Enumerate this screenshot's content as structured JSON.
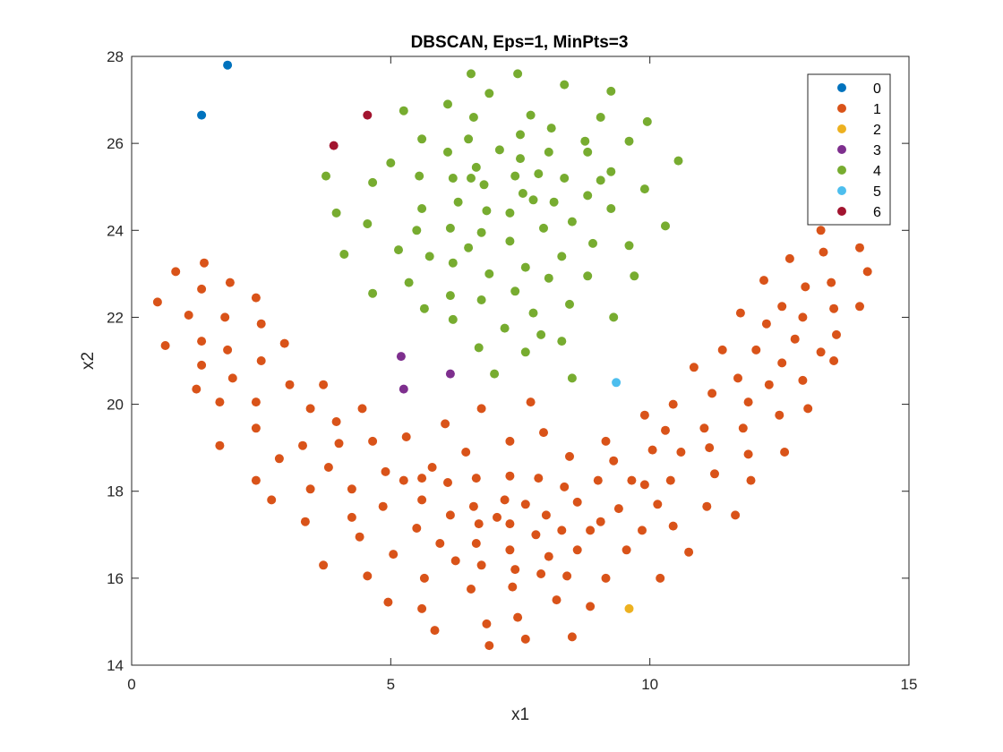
{
  "chart_data": {
    "type": "scatter",
    "title": "DBSCAN, Eps=1, MinPts=3",
    "xlabel": "x1",
    "ylabel": "x2",
    "xlim": [
      0,
      15
    ],
    "ylim": [
      14,
      28
    ],
    "xticks": [
      "0",
      "5",
      "10",
      "15"
    ],
    "yticks": [
      "14",
      "16",
      "18",
      "20",
      "22",
      "24",
      "26",
      "28"
    ],
    "legend_position": "top-right",
    "grid": false,
    "series": [
      {
        "name": "0",
        "color": "#0072BD",
        "points": [
          [
            1.35,
            26.65
          ],
          [
            1.85,
            27.8
          ]
        ]
      },
      {
        "name": "1",
        "color": "#D95319",
        "points": [
          [
            0.5,
            22.35
          ],
          [
            0.65,
            21.35
          ],
          [
            0.85,
            23.05
          ],
          [
            1.1,
            22.05
          ],
          [
            1.25,
            20.35
          ],
          [
            1.35,
            21.45
          ],
          [
            1.35,
            20.9
          ],
          [
            1.35,
            22.65
          ],
          [
            1.4,
            23.25
          ],
          [
            1.7,
            20.05
          ],
          [
            1.7,
            19.05
          ],
          [
            1.8,
            22.0
          ],
          [
            1.85,
            21.25
          ],
          [
            1.9,
            22.8
          ],
          [
            1.95,
            20.6
          ],
          [
            2.4,
            22.45
          ],
          [
            2.4,
            20.05
          ],
          [
            2.4,
            19.45
          ],
          [
            2.4,
            18.25
          ],
          [
            2.5,
            21.85
          ],
          [
            2.5,
            21.0
          ],
          [
            2.7,
            17.8
          ],
          [
            2.85,
            18.75
          ],
          [
            2.95,
            21.4
          ],
          [
            3.05,
            20.45
          ],
          [
            3.3,
            19.05
          ],
          [
            3.35,
            17.3
          ],
          [
            3.45,
            19.9
          ],
          [
            3.45,
            18.05
          ],
          [
            3.7,
            20.45
          ],
          [
            3.7,
            16.3
          ],
          [
            3.8,
            18.55
          ],
          [
            3.95,
            19.6
          ],
          [
            4.0,
            19.1
          ],
          [
            4.25,
            18.05
          ],
          [
            4.25,
            17.4
          ],
          [
            4.4,
            16.95
          ],
          [
            4.45,
            19.9
          ],
          [
            4.55,
            16.05
          ],
          [
            4.65,
            19.15
          ],
          [
            4.85,
            17.65
          ],
          [
            4.9,
            18.45
          ],
          [
            4.95,
            15.45
          ],
          [
            5.05,
            16.55
          ],
          [
            5.25,
            18.25
          ],
          [
            5.3,
            19.25
          ],
          [
            5.5,
            17.15
          ],
          [
            5.6,
            18.3
          ],
          [
            5.6,
            17.8
          ],
          [
            5.6,
            15.3
          ],
          [
            5.65,
            16.0
          ],
          [
            5.8,
            18.55
          ],
          [
            5.85,
            14.8
          ],
          [
            5.95,
            16.8
          ],
          [
            6.05,
            19.55
          ],
          [
            6.1,
            18.2
          ],
          [
            6.15,
            17.45
          ],
          [
            6.25,
            16.4
          ],
          [
            6.45,
            18.9
          ],
          [
            6.55,
            15.75
          ],
          [
            6.6,
            17.65
          ],
          [
            6.65,
            18.3
          ],
          [
            6.65,
            16.8
          ],
          [
            6.7,
            17.25
          ],
          [
            6.75,
            19.9
          ],
          [
            6.75,
            16.3
          ],
          [
            6.85,
            14.95
          ],
          [
            6.9,
            14.45
          ],
          [
            7.05,
            17.4
          ],
          [
            7.2,
            17.8
          ],
          [
            7.3,
            19.15
          ],
          [
            7.3,
            18.35
          ],
          [
            7.3,
            17.25
          ],
          [
            7.3,
            16.65
          ],
          [
            7.35,
            15.8
          ],
          [
            7.4,
            16.2
          ],
          [
            7.45,
            15.1
          ],
          [
            7.6,
            17.7
          ],
          [
            7.6,
            14.6
          ],
          [
            7.7,
            20.05
          ],
          [
            7.8,
            17.0
          ],
          [
            7.85,
            18.3
          ],
          [
            7.9,
            16.1
          ],
          [
            7.95,
            19.35
          ],
          [
            8.0,
            17.45
          ],
          [
            8.05,
            16.5
          ],
          [
            8.2,
            15.5
          ],
          [
            8.3,
            17.1
          ],
          [
            8.35,
            18.1
          ],
          [
            8.4,
            16.05
          ],
          [
            8.45,
            18.8
          ],
          [
            8.5,
            14.65
          ],
          [
            8.6,
            17.75
          ],
          [
            8.6,
            16.65
          ],
          [
            8.85,
            17.1
          ],
          [
            8.85,
            15.35
          ],
          [
            9.0,
            18.25
          ],
          [
            9.05,
            17.3
          ],
          [
            9.15,
            19.15
          ],
          [
            9.15,
            16.0
          ],
          [
            9.3,
            18.7
          ],
          [
            9.4,
            17.6
          ],
          [
            9.55,
            16.65
          ],
          [
            9.65,
            18.25
          ],
          [
            9.85,
            17.1
          ],
          [
            9.9,
            18.15
          ],
          [
            9.9,
            19.75
          ],
          [
            10.05,
            18.95
          ],
          [
            10.15,
            17.7
          ],
          [
            10.2,
            16.0
          ],
          [
            10.3,
            19.4
          ],
          [
            10.4,
            18.25
          ],
          [
            10.45,
            17.2
          ],
          [
            10.45,
            20.0
          ],
          [
            10.6,
            18.9
          ],
          [
            10.75,
            16.6
          ],
          [
            10.85,
            20.85
          ],
          [
            11.05,
            19.45
          ],
          [
            11.1,
            17.65
          ],
          [
            11.15,
            19.0
          ],
          [
            11.2,
            20.25
          ],
          [
            11.25,
            18.4
          ],
          [
            11.4,
            21.25
          ],
          [
            11.65,
            17.45
          ],
          [
            11.7,
            20.6
          ],
          [
            11.75,
            22.1
          ],
          [
            11.8,
            19.45
          ],
          [
            11.9,
            18.85
          ],
          [
            11.9,
            20.05
          ],
          [
            11.95,
            18.25
          ],
          [
            12.05,
            21.25
          ],
          [
            12.2,
            22.85
          ],
          [
            12.25,
            21.85
          ],
          [
            12.3,
            20.45
          ],
          [
            12.5,
            19.75
          ],
          [
            12.55,
            20.95
          ],
          [
            12.55,
            22.25
          ],
          [
            12.6,
            18.9
          ],
          [
            12.7,
            23.35
          ],
          [
            12.8,
            21.5
          ],
          [
            12.95,
            20.55
          ],
          [
            12.95,
            22.0
          ],
          [
            13.0,
            22.7
          ],
          [
            13.05,
            19.9
          ],
          [
            13.3,
            21.2
          ],
          [
            13.3,
            24.0
          ],
          [
            13.35,
            23.5
          ],
          [
            13.5,
            22.8
          ],
          [
            13.55,
            22.2
          ],
          [
            13.55,
            21.0
          ],
          [
            13.6,
            21.6
          ],
          [
            14.05,
            23.6
          ],
          [
            14.05,
            22.25
          ],
          [
            14.2,
            23.05
          ]
        ]
      },
      {
        "name": "2",
        "color": "#EDB120",
        "points": [
          [
            9.6,
            15.3
          ]
        ]
      },
      {
        "name": "3",
        "color": "#7E2F8E",
        "points": [
          [
            5.2,
            21.1
          ],
          [
            5.25,
            20.35
          ],
          [
            6.15,
            20.7
          ]
        ]
      },
      {
        "name": "4",
        "color": "#77AC30",
        "points": [
          [
            3.75,
            25.25
          ],
          [
            3.95,
            24.4
          ],
          [
            4.1,
            23.45
          ],
          [
            4.55,
            24.15
          ],
          [
            4.65,
            25.1
          ],
          [
            4.65,
            22.55
          ],
          [
            5.0,
            25.55
          ],
          [
            5.15,
            23.55
          ],
          [
            5.25,
            26.75
          ],
          [
            5.35,
            22.8
          ],
          [
            5.5,
            24.0
          ],
          [
            5.55,
            25.25
          ],
          [
            5.6,
            26.1
          ],
          [
            5.6,
            24.5
          ],
          [
            5.65,
            22.2
          ],
          [
            5.75,
            23.4
          ],
          [
            6.1,
            26.9
          ],
          [
            6.1,
            25.8
          ],
          [
            6.15,
            24.05
          ],
          [
            6.15,
            22.5
          ],
          [
            6.2,
            25.2
          ],
          [
            6.2,
            23.25
          ],
          [
            6.2,
            21.95
          ],
          [
            6.3,
            24.65
          ],
          [
            6.5,
            26.1
          ],
          [
            6.5,
            23.6
          ],
          [
            6.55,
            25.2
          ],
          [
            6.55,
            27.6
          ],
          [
            6.6,
            26.6
          ],
          [
            6.65,
            25.45
          ],
          [
            6.7,
            21.3
          ],
          [
            6.75,
            23.95
          ],
          [
            6.75,
            22.4
          ],
          [
            6.8,
            25.05
          ],
          [
            6.85,
            24.45
          ],
          [
            6.9,
            27.15
          ],
          [
            6.9,
            23.0
          ],
          [
            7.0,
            20.7
          ],
          [
            7.1,
            25.85
          ],
          [
            7.2,
            21.75
          ],
          [
            7.3,
            24.4
          ],
          [
            7.3,
            23.75
          ],
          [
            7.4,
            25.25
          ],
          [
            7.4,
            22.6
          ],
          [
            7.45,
            27.6
          ],
          [
            7.5,
            26.2
          ],
          [
            7.5,
            25.65
          ],
          [
            7.55,
            24.85
          ],
          [
            7.6,
            23.15
          ],
          [
            7.6,
            21.2
          ],
          [
            7.7,
            26.65
          ],
          [
            7.75,
            24.7
          ],
          [
            7.75,
            22.1
          ],
          [
            7.85,
            25.3
          ],
          [
            7.9,
            21.6
          ],
          [
            7.95,
            24.05
          ],
          [
            8.05,
            25.8
          ],
          [
            8.05,
            22.9
          ],
          [
            8.1,
            26.35
          ],
          [
            8.15,
            24.65
          ],
          [
            8.3,
            23.4
          ],
          [
            8.3,
            21.45
          ],
          [
            8.35,
            27.35
          ],
          [
            8.35,
            25.2
          ],
          [
            8.45,
            22.3
          ],
          [
            8.5,
            24.2
          ],
          [
            8.5,
            20.6
          ],
          [
            8.75,
            26.05
          ],
          [
            8.8,
            25.8
          ],
          [
            8.8,
            24.8
          ],
          [
            8.8,
            22.95
          ],
          [
            8.9,
            23.7
          ],
          [
            9.05,
            26.6
          ],
          [
            9.05,
            25.15
          ],
          [
            9.25,
            27.2
          ],
          [
            9.25,
            25.35
          ],
          [
            9.25,
            24.5
          ],
          [
            9.3,
            22.0
          ],
          [
            9.6,
            26.05
          ],
          [
            9.6,
            23.65
          ],
          [
            9.7,
            22.95
          ],
          [
            9.9,
            24.95
          ],
          [
            9.95,
            26.5
          ],
          [
            10.3,
            24.1
          ],
          [
            10.55,
            25.6
          ]
        ]
      },
      {
        "name": "5",
        "color": "#4DBEEE",
        "points": [
          [
            9.35,
            20.5
          ]
        ]
      },
      {
        "name": "6",
        "color": "#A2142F",
        "points": [
          [
            3.9,
            25.95
          ],
          [
            4.55,
            26.65
          ]
        ]
      }
    ]
  }
}
